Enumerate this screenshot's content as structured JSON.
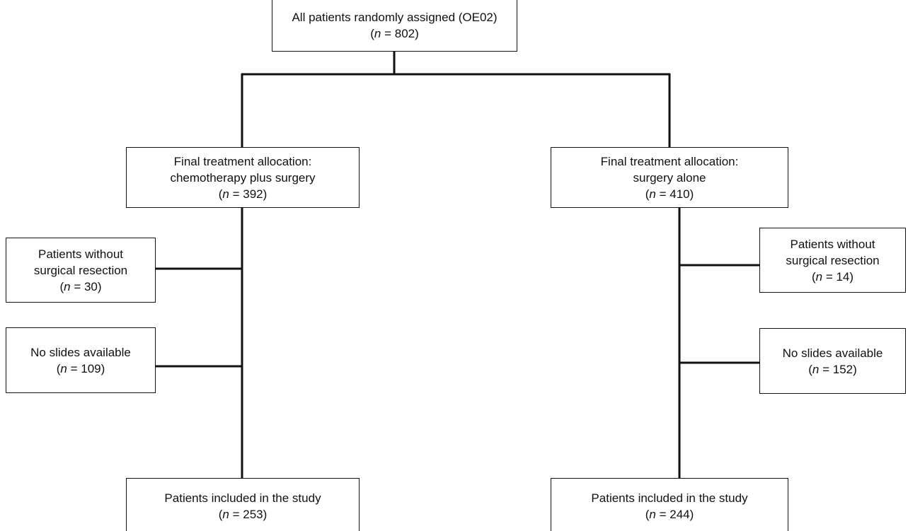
{
  "nodes": [
    {
      "lines": [
        "All patients randomly assigned (OE02)"
      ],
      "count": [
        "(",
        "n",
        " = 802)"
      ]
    },
    {
      "lines": [
        "Final treatment allocation:",
        "chemotherapy plus surgery"
      ],
      "count": [
        "(",
        "n",
        " = 392)"
      ]
    },
    {
      "lines": [
        "Final treatment allocation:",
        "surgery alone"
      ],
      "count": [
        "(",
        "n",
        " = 410)"
      ]
    },
    {
      "lines": [
        "Patients without",
        "surgical resection"
      ],
      "count": [
        "(",
        "n",
        " = 30)"
      ]
    },
    {
      "lines": [
        "No slides available"
      ],
      "count": [
        "(",
        "n",
        " = 109)"
      ]
    },
    {
      "lines": [
        "Patients without",
        "surgical resection"
      ],
      "count": [
        "(",
        "n",
        " = 14)"
      ]
    },
    {
      "lines": [
        "No slides available"
      ],
      "count": [
        "(",
        "n",
        " = 152)"
      ]
    },
    {
      "lines": [
        "Patients included in the study"
      ],
      "count": [
        "(",
        "n",
        " = 253)"
      ]
    },
    {
      "lines": [
        "Patients included in the study"
      ],
      "count": [
        "(",
        "n",
        " = 244)"
      ]
    }
  ]
}
